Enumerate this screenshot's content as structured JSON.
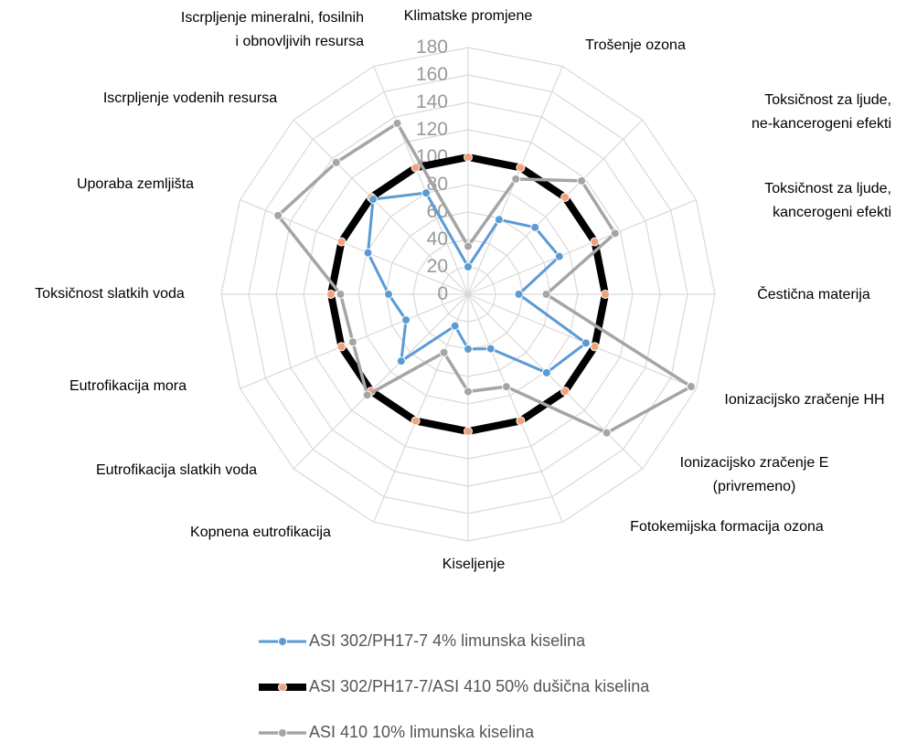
{
  "chart_data": {
    "type": "radar",
    "categories": [
      "Klimatske promjene",
      "Trošenje ozona",
      "Toksičnost za ljude,\nne-kancerogeni efekti",
      "Toksičnost za ljude,\nkancerogeni efekti",
      "Čestična materija",
      "Ionizacijsko zračenje HH",
      "Ionizacijsko zračenje E\n(privremeno)",
      "Fotokemijska formacija ozona",
      "Kiseljenje",
      "Kopnena eutrofikacija",
      "Eutrofikacija slatkih voda",
      "Eutrofikacija mora",
      "Toksičnost slatkih voda",
      "Uporaba zemljišta",
      "Iscrpljenje vodenih resursa",
      "Iscrpljenje mineralni, fosilnih\ni obnovljivih resursa"
    ],
    "series": [
      {
        "name": "ASI 302/PH17-7 4% limunska kiselina",
        "color": "#5b9bd5",
        "marker_color": "#5b9bd5",
        "values": [
          20,
          59,
          69,
          72,
          37,
          93,
          81,
          43,
          40,
          25,
          69,
          49,
          58,
          79,
          98,
          80
        ]
      },
      {
        "name": "ASI 302/PH17-7/ASI 410 50% dušična kiselina",
        "color": "#000000",
        "marker_color": "#f4a07a",
        "values": [
          100,
          100,
          100,
          100,
          100,
          100,
          100,
          100,
          100,
          100,
          100,
          100,
          100,
          100,
          100,
          100
        ]
      },
      {
        "name": "ASI 410 10% limunska kiselina",
        "color": "#a5a5a5",
        "marker_color": "#a5a5a5",
        "values": [
          35,
          91,
          117,
          116,
          57,
          176,
          143,
          73,
          71,
          46,
          104,
          91,
          93,
          150,
          136,
          135
        ]
      }
    ],
    "ylim": [
      0,
      180
    ],
    "yticks": [
      0,
      20,
      40,
      60,
      80,
      100,
      120,
      140,
      160,
      180
    ],
    "grid": true
  }
}
